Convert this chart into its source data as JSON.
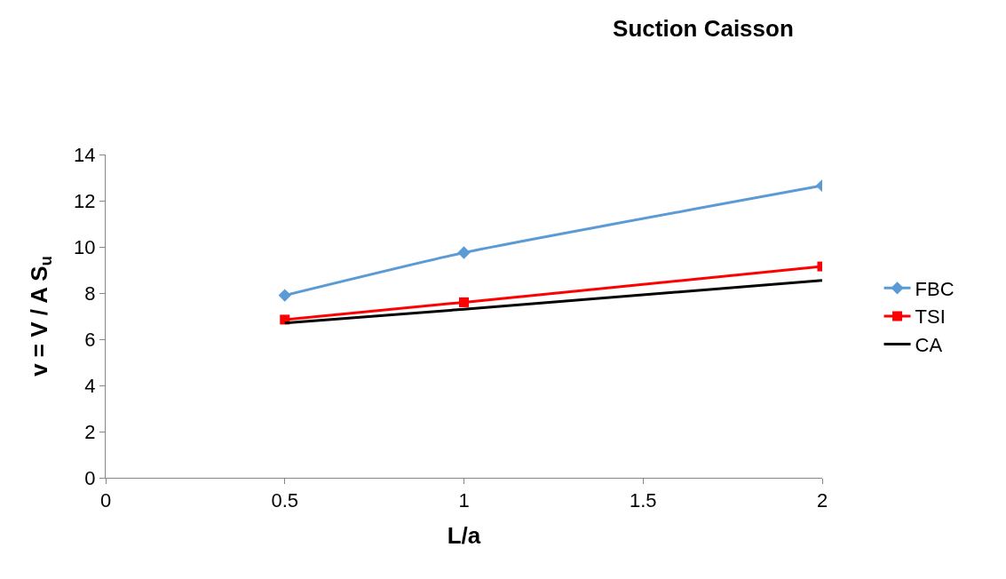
{
  "chart_data": {
    "type": "line",
    "title": "Suction Caisson",
    "xlabel": "L/a",
    "ylabel": "v = V / A S$_{u}$",
    "x": [
      0.5,
      1,
      2
    ],
    "series": [
      {
        "name": "FBC",
        "color": "#5b9bd5",
        "values": [
          7.9,
          9.75,
          12.65
        ],
        "marker": "diamond"
      },
      {
        "name": "TSI",
        "color": "#ff0000",
        "values": [
          6.85,
          7.6,
          9.15
        ],
        "marker": "square"
      },
      {
        "name": "CA",
        "color": "#000000",
        "values": [
          6.7,
          7.3,
          8.55
        ],
        "marker": "none"
      }
    ],
    "xlim": [
      0,
      2
    ],
    "xticks": [
      0,
      0.5,
      1,
      1.5,
      2
    ],
    "ylim": [
      0,
      14
    ],
    "yticks": [
      0,
      2,
      4,
      6,
      8,
      10,
      12,
      14
    ],
    "grid": false,
    "legend": "right",
    "line_style": "solid"
  }
}
